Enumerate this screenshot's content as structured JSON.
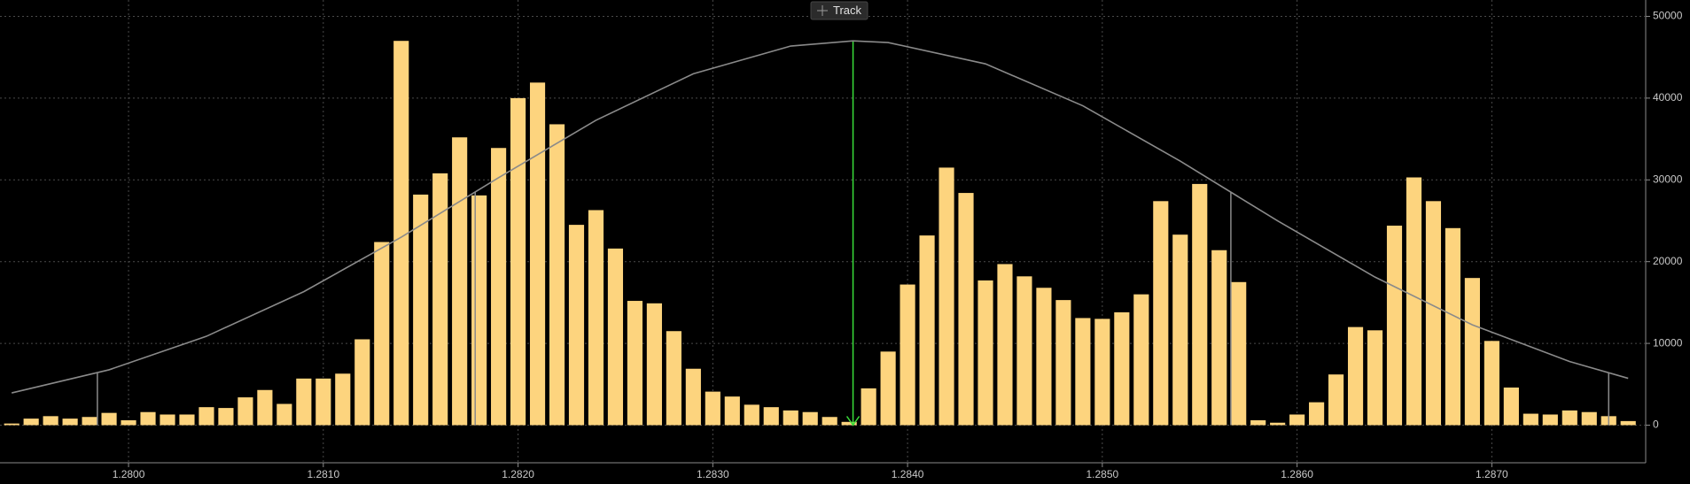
{
  "chart_data": {
    "type": "histogram",
    "bins": [
      1.27935,
      1.27945,
      1.27955,
      1.27965,
      1.27975,
      1.27985,
      1.27995,
      1.28005,
      1.28015,
      1.28025,
      1.28035,
      1.28045,
      1.28055,
      1.28065,
      1.28075,
      1.28085,
      1.28095,
      1.28105,
      1.28115,
      1.28125,
      1.28135,
      1.28145,
      1.28155,
      1.28165,
      1.28175,
      1.28185,
      1.28195,
      1.28205,
      1.28215,
      1.28225,
      1.28235,
      1.28245,
      1.28255,
      1.28265,
      1.28275,
      1.28285,
      1.28295,
      1.28305,
      1.28315,
      1.28325,
      1.28335,
      1.28345,
      1.28355,
      1.28365,
      1.28375,
      1.28385,
      1.28395,
      1.28405,
      1.28415,
      1.28425,
      1.28435,
      1.28445,
      1.28455,
      1.28465,
      1.28475,
      1.28485,
      1.28495,
      1.28505,
      1.28515,
      1.28525,
      1.28535,
      1.28545,
      1.28555,
      1.28565,
      1.28575,
      1.28585,
      1.28595,
      1.28605,
      1.28615,
      1.28625,
      1.28635,
      1.28645,
      1.28655,
      1.28665,
      1.28675,
      1.28685,
      1.28695,
      1.28705,
      1.28715,
      1.28725,
      1.28735,
      1.28745,
      1.28755,
      1.28765,
      1.28775
    ],
    "values": [
      200,
      800,
      1100,
      800,
      1000,
      1500,
      600,
      1600,
      1300,
      1300,
      2200,
      2100,
      3400,
      4300,
      2600,
      5700,
      5700,
      6300,
      10500,
      22400,
      47000,
      28200,
      30800,
      35200,
      28100,
      33900,
      40000,
      41900,
      36800,
      24500,
      26300,
      21600,
      15200,
      14900,
      11500,
      6900,
      4100,
      3500,
      2500,
      2200,
      1800,
      1600,
      1000,
      400,
      4500,
      9000,
      17200,
      23200,
      31500,
      28400,
      17700,
      19700,
      18200,
      16800,
      15300,
      13100,
      13000,
      13800,
      16000,
      27400,
      23300,
      29500,
      21400,
      17500,
      600,
      300,
      1300,
      2800,
      6200,
      12000,
      11600,
      24400,
      30300,
      27400,
      24100,
      18000,
      10300,
      4600,
      1400,
      1300,
      1800,
      1600,
      1100,
      500
    ],
    "color": "#fdd47e",
    "curve": {
      "x": [
        1.2794,
        1.2799,
        1.2804,
        1.2809,
        1.2814,
        1.2819,
        1.2824,
        1.2829,
        1.2834,
        1.28372,
        1.2839,
        1.2844,
        1.2849,
        1.2854,
        1.2859,
        1.2864,
        1.2869,
        1.2874,
        1.2877
      ],
      "values": [
        3940,
        6770,
        10870,
        16330,
        22990,
        30270,
        37290,
        42980,
        46370,
        47000,
        46800,
        44190,
        39060,
        32300,
        24990,
        18110,
        12270,
        7780,
        5730
      ],
      "color": "#8a8a8a"
    },
    "reference_lines": [
      {
        "x": 1.28372,
        "y": 47000,
        "color": "#3adf3a"
      },
      {
        "x": 1.28178,
        "y": 28500,
        "color": "#8a8a8a"
      },
      {
        "x": 1.28566,
        "y": 28500,
        "color": "#8a8a8a"
      },
      {
        "x": 1.27984,
        "y": 6360,
        "color": "#8a8a8a"
      },
      {
        "x": 1.2876,
        "y": 6360,
        "color": "#8a8a8a"
      }
    ],
    "xlim": [
      1.27934,
      1.28779
    ],
    "ylim": [
      -4600,
      52000
    ],
    "xticks": [
      {
        "value": 1.28,
        "label": "1.2800"
      },
      {
        "value": 1.281,
        "label": "1.2810"
      },
      {
        "value": 1.282,
        "label": "1.2820"
      },
      {
        "value": 1.283,
        "label": "1.2830"
      },
      {
        "value": 1.284,
        "label": "1.2840"
      },
      {
        "value": 1.285,
        "label": "1.2850"
      },
      {
        "value": 1.286,
        "label": "1.2860"
      },
      {
        "value": 1.287,
        "label": "1.2870"
      }
    ],
    "yticks": [
      0,
      10000,
      20000,
      30000,
      40000,
      50000
    ],
    "grid": true
  },
  "toolbar": {
    "button": "Track"
  }
}
